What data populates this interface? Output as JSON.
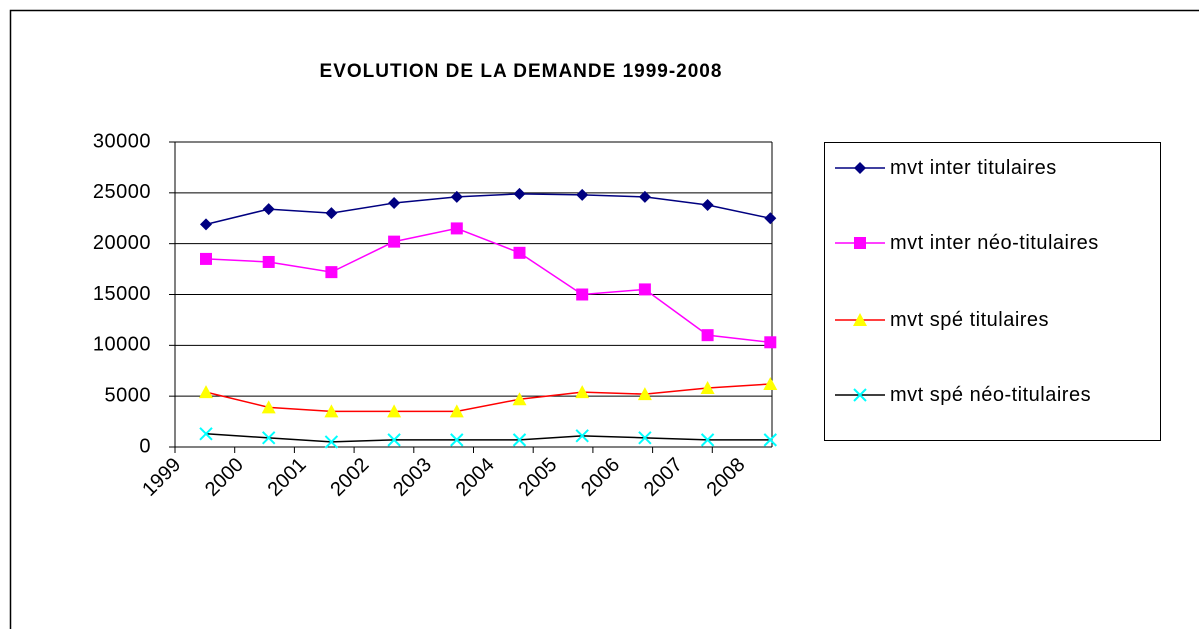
{
  "chart_data": {
    "type": "line",
    "title": "EVOLUTION DE LA DEMANDE 1999-2008",
    "categories": [
      "1999",
      "2000",
      "2001",
      "2002",
      "2003",
      "2004",
      "2005",
      "2006",
      "2007",
      "2008"
    ],
    "series": [
      {
        "name": "mvt inter titulaires",
        "color": "#000080",
        "marker": "diamond",
        "marker_color": "#000080",
        "values": [
          21900,
          23400,
          23000,
          24000,
          24600,
          24900,
          24800,
          24600,
          23800,
          22500
        ]
      },
      {
        "name": "mvt inter néo-titulaires",
        "color": "#ff00ff",
        "marker": "square",
        "marker_color": "#ff00ff",
        "values": [
          18500,
          18200,
          17200,
          20200,
          21500,
          19100,
          15000,
          15500,
          11000,
          10300
        ]
      },
      {
        "name": "mvt spé titulaires",
        "color": "#ff0000",
        "marker": "triangle",
        "marker_color": "#ffff00",
        "values": [
          5400,
          3900,
          3500,
          3500,
          3500,
          4700,
          5400,
          5200,
          5800,
          6200
        ]
      },
      {
        "name": "mvt spé néo-titulaires",
        "color": "#000000",
        "marker": "x",
        "marker_color": "#00ffff",
        "values": [
          1300,
          900,
          500,
          700,
          700,
          700,
          1100,
          900,
          700,
          700
        ]
      }
    ],
    "ylim": [
      0,
      30000
    ],
    "yticks": [
      0,
      5000,
      10000,
      15000,
      20000,
      25000,
      30000
    ],
    "grid": true,
    "legend": "right"
  }
}
